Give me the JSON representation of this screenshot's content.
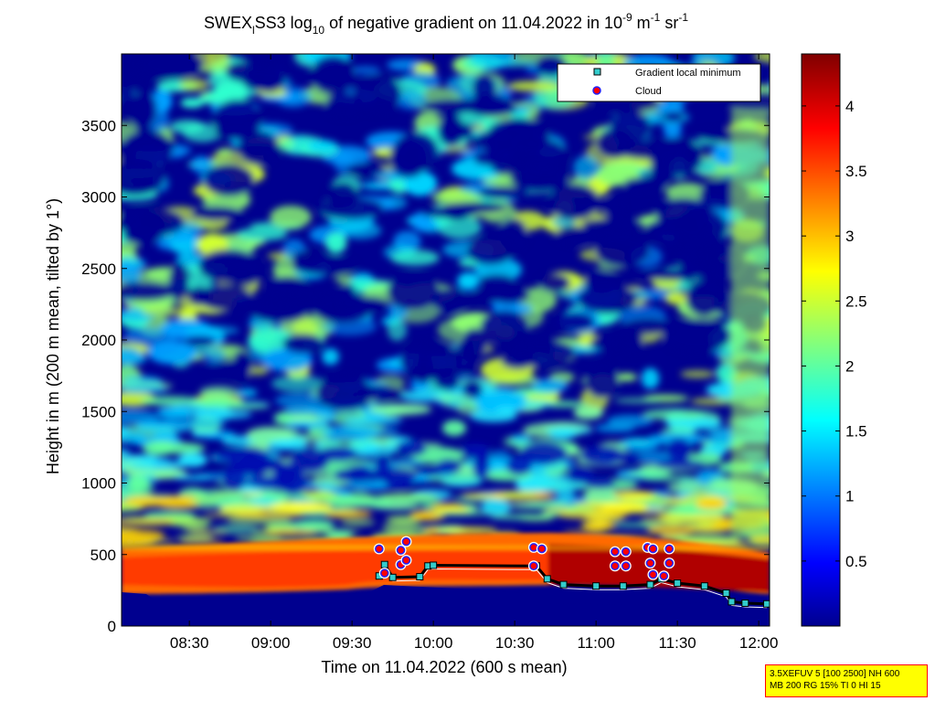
{
  "chart_data": {
    "type": "heatmap",
    "title": {
      "part1": "SWEX",
      "sub1": "l",
      "part2": "SS3 log",
      "sub2": "10",
      "part3": " of negative gradient on 11.04.2022 in 10",
      "sup1": "-9",
      "part4": " m",
      "sup2": "-1",
      "part5": " sr",
      "sup3": "-1"
    },
    "xlabel": "Time on 11.04.2022 (600 s mean)",
    "ylabel": "Height in m (200 m mean, tilted by 1°)",
    "x_ticks": [
      "08:30",
      "09:00",
      "09:30",
      "10:00",
      "10:30",
      "11:00",
      "11:30",
      "12:00"
    ],
    "y_ticks": [
      "0",
      "500",
      "1000",
      "1500",
      "2000",
      "2500",
      "3000",
      "3500"
    ],
    "xlim": [
      "08:05",
      "12:04"
    ],
    "ylim": [
      0,
      4000
    ],
    "grid": false,
    "colorbar": {
      "ticks": [
        "0.5",
        "1",
        "1.5",
        "2",
        "2.5",
        "3",
        "3.5",
        "4"
      ],
      "range": [
        0,
        4.4
      ],
      "colormap": "jet"
    },
    "legend": {
      "placement": "top-right",
      "entries": [
        {
          "label": "Gradient local minimum",
          "marker": "square",
          "color": "#33cccc"
        },
        {
          "label": "Cloud",
          "marker": "circle",
          "color": "#ff0000"
        }
      ]
    },
    "gradient_minimum": [
      {
        "t": "09:40",
        "h": 350
      },
      {
        "t": "09:42",
        "h": 430
      },
      {
        "t": "09:45",
        "h": 340
      },
      {
        "t": "09:55",
        "h": 345
      },
      {
        "t": "09:58",
        "h": 420
      },
      {
        "t": "10:00",
        "h": 425
      },
      {
        "t": "10:38",
        "h": 420
      },
      {
        "t": "10:42",
        "h": 330
      },
      {
        "t": "10:48",
        "h": 290
      },
      {
        "t": "11:00",
        "h": 280
      },
      {
        "t": "11:10",
        "h": 280
      },
      {
        "t": "11:20",
        "h": 290
      },
      {
        "t": "11:24",
        "h": 330
      },
      {
        "t": "11:30",
        "h": 300
      },
      {
        "t": "11:40",
        "h": 280
      },
      {
        "t": "11:48",
        "h": 230
      },
      {
        "t": "11:50",
        "h": 170
      },
      {
        "t": "11:55",
        "h": 160
      },
      {
        "t": "12:03",
        "h": 155
      }
    ],
    "cloud": [
      {
        "t": "09:40",
        "h": 540
      },
      {
        "t": "09:42",
        "h": 370
      },
      {
        "t": "09:48",
        "h": 430
      },
      {
        "t": "09:48",
        "h": 530
      },
      {
        "t": "09:50",
        "h": 590
      },
      {
        "t": "09:50",
        "h": 460
      },
      {
        "t": "10:37",
        "h": 550
      },
      {
        "t": "10:40",
        "h": 540
      },
      {
        "t": "10:37",
        "h": 420
      },
      {
        "t": "11:07",
        "h": 520
      },
      {
        "t": "11:11",
        "h": 520
      },
      {
        "t": "11:07",
        "h": 420
      },
      {
        "t": "11:11",
        "h": 420
      },
      {
        "t": "11:19",
        "h": 550
      },
      {
        "t": "11:21",
        "h": 540
      },
      {
        "t": "11:20",
        "h": 440
      },
      {
        "t": "11:21",
        "h": 360
      },
      {
        "t": "11:25",
        "h": 350
      },
      {
        "t": "11:27",
        "h": 540
      },
      {
        "t": "11:27",
        "h": 440
      }
    ]
  },
  "info_box": {
    "line1": "3.5XEFUV 5 [100 2500] NH 600",
    "line2": "MB 200 RG 15% TI 0 HI 15"
  }
}
